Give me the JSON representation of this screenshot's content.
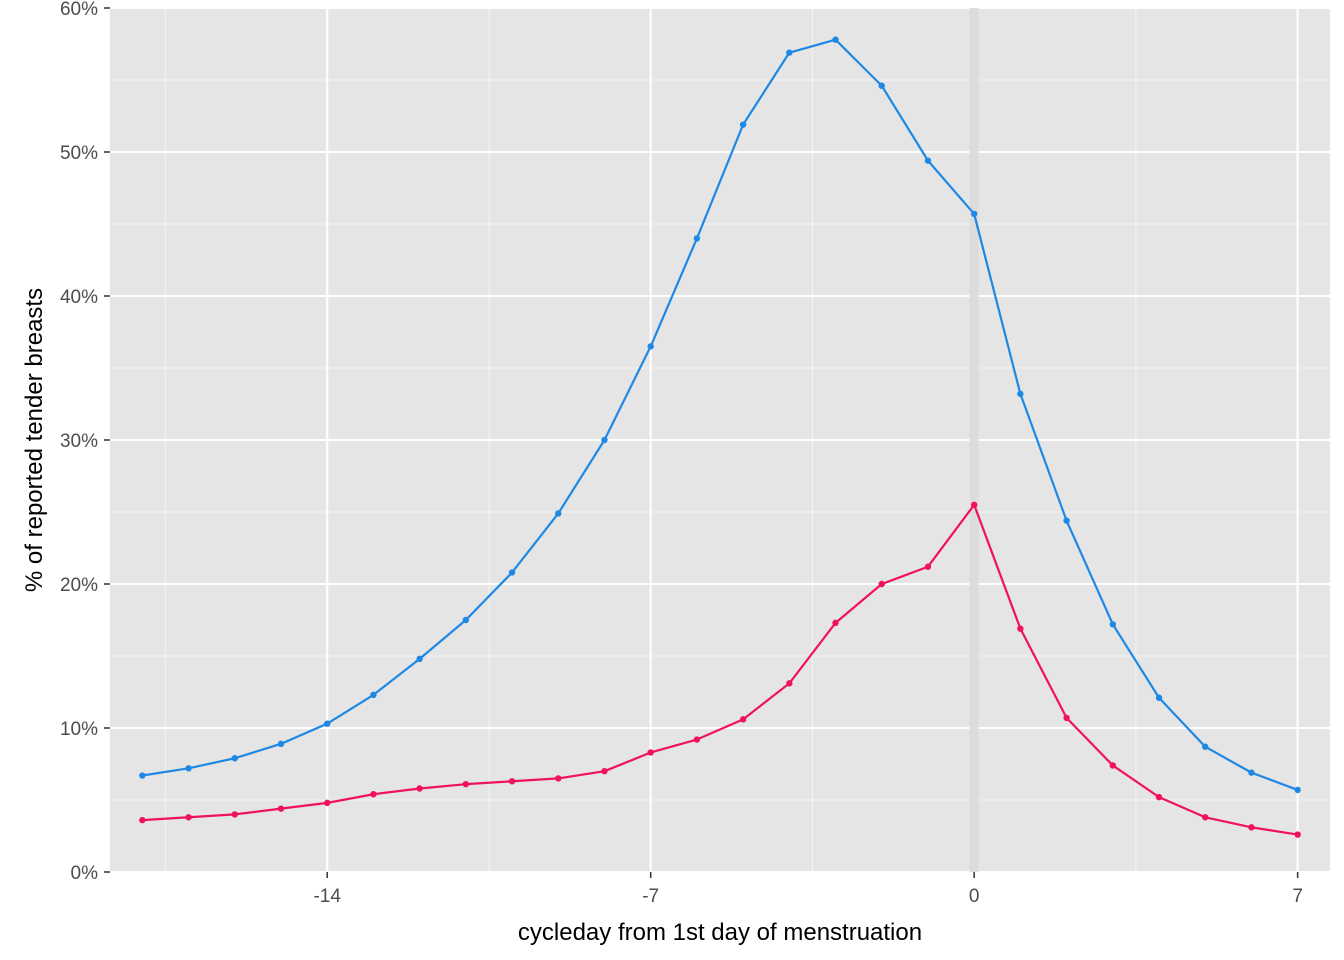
{
  "chart_data": {
    "type": "line",
    "title": "",
    "xlabel": "cycleday from 1st day of menstruation",
    "ylabel": "% of reported tender breasts",
    "xlim": [
      -18.7,
      7.7
    ],
    "ylim": [
      0,
      60
    ],
    "x_ticks": [
      -14,
      -7,
      0,
      7
    ],
    "x_tick_labels": [
      "-14",
      "-7",
      "0",
      "7"
    ],
    "y_ticks": [
      0,
      10,
      20,
      30,
      40,
      50,
      60
    ],
    "y_tick_labels": [
      "0%",
      "10%",
      "20%",
      "30%",
      "40%",
      "50%",
      "60%"
    ],
    "grid": true,
    "legend": "none",
    "reference_line": {
      "x": 0,
      "color": "#dcdcdc"
    },
    "x": [
      -18,
      -17,
      -16,
      -15,
      -14,
      -13,
      -12,
      -11,
      -10,
      -9,
      -8,
      -7,
      -6,
      -5,
      -4,
      -3,
      -2,
      -1,
      0,
      1,
      2,
      3,
      4,
      5,
      6,
      7
    ],
    "series": [
      {
        "color": "#1e88e5",
        "values": [
          6.7,
          7.2,
          7.9,
          8.9,
          10.3,
          12.3,
          14.8,
          17.5,
          20.8,
          24.9,
          30.0,
          36.5,
          44.0,
          51.9,
          56.9,
          57.8,
          54.6,
          49.4,
          45.7,
          33.2,
          24.4,
          17.2,
          12.1,
          8.7,
          6.9,
          5.7
        ]
      },
      {
        "color": "#f0115f",
        "values": [
          3.6,
          3.8,
          4.0,
          4.4,
          4.8,
          5.4,
          5.8,
          6.1,
          6.3,
          6.5,
          7.0,
          8.3,
          9.2,
          10.6,
          13.1,
          17.3,
          20.0,
          21.2,
          25.5,
          16.9,
          10.7,
          7.4,
          5.2,
          3.8,
          3.1,
          2.6
        ]
      }
    ]
  }
}
